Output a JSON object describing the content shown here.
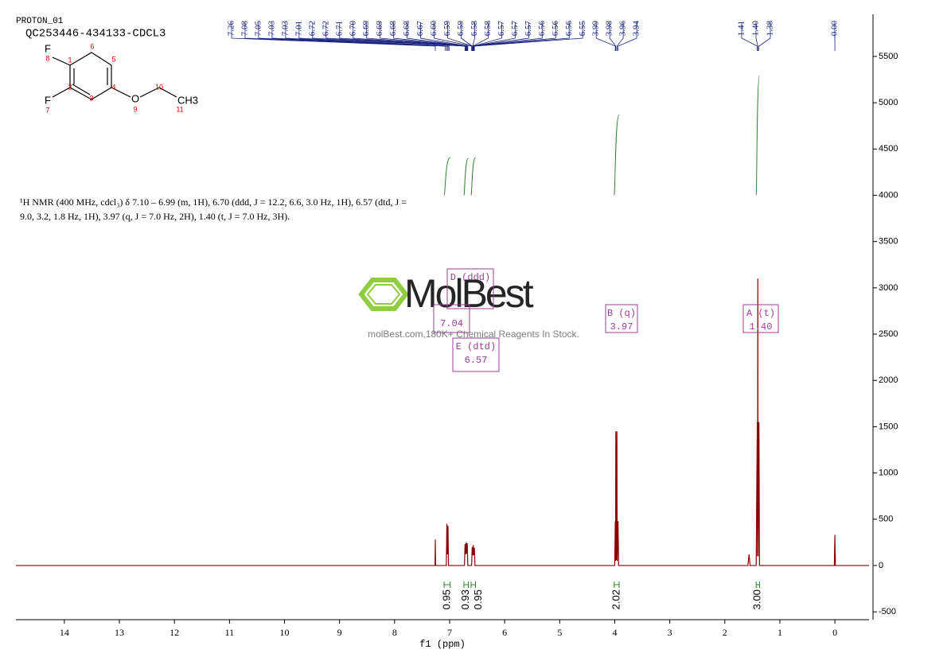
{
  "chart_data": {
    "type": "line",
    "title": "PROTON_01",
    "subtitle": "QC253446-434133-CDCL3",
    "x_label": "f1 (ppm)",
    "xlim": [
      14.88,
      -0.62
    ],
    "xticks": [
      14,
      13,
      12,
      11,
      10,
      9,
      8,
      7,
      6,
      5,
      4,
      3,
      2,
      1,
      0
    ],
    "ylim": [
      -585,
      5955
    ],
    "yticks": [
      -500,
      0,
      500,
      1000,
      1500,
      2000,
      2500,
      3000,
      3500,
      4000,
      4500,
      5000,
      5500
    ],
    "series": [
      {
        "color": "#8b0000",
        "x": [
          14.88,
          7.265,
          7.26,
          7.255,
          7.06,
          7.05,
          7.04,
          7.03,
          7.02,
          6.73,
          6.72,
          6.71,
          6.7,
          6.69,
          6.68,
          6.67,
          6.6,
          6.59,
          6.58,
          6.57,
          6.56,
          6.55,
          6.54,
          4.0,
          3.99,
          3.985,
          3.98,
          3.97,
          3.96,
          3.955,
          3.94,
          3.93,
          1.58,
          1.56,
          1.54,
          1.43,
          1.41,
          1.405,
          1.4,
          1.395,
          1.38,
          1.37,
          0.01,
          0,
          -0.01,
          -0.62
        ],
        "values": [
          0,
          0,
          280,
          0,
          0,
          450,
          120,
          430,
          0,
          0,
          230,
          120,
          250,
          130,
          240,
          0,
          0,
          200,
          110,
          220,
          110,
          190,
          0,
          0,
          480,
          50,
          1450,
          60,
          1450,
          50,
          480,
          0,
          0,
          120,
          0,
          0,
          1550,
          100,
          3100,
          100,
          1550,
          0,
          0,
          330,
          0,
          0
        ]
      }
    ],
    "peak_label_groups": [
      [
        "7.26",
        "7.08",
        "7.05",
        "7.03",
        "7.03",
        "7.01",
        "6.72",
        "6.72",
        "6.71",
        "6.70",
        "6.69",
        "6.69",
        "6.68",
        "6.68",
        "6.67",
        "6.60",
        "6.59",
        "6.59",
        "6.58",
        "6.58",
        "6.57",
        "6.57",
        "6.57",
        "6.56",
        "6.56",
        "6.56",
        "6.55",
        "3.99",
        "3.98",
        "3.96",
        "3.94"
      ],
      [
        "1.41",
        "1.40",
        "1.38"
      ],
      [
        "-0.00"
      ]
    ],
    "integrals": [
      {
        "value": 0.95,
        "label": "0.95",
        "range": [
          7.1,
          6.99
        ]
      },
      {
        "value": 0.93,
        "label": "0.93",
        "range": [
          6.74,
          6.66
        ]
      },
      {
        "value": 0.95,
        "label": "0.95",
        "range": [
          6.61,
          6.53
        ]
      },
      {
        "value": 2.02,
        "label": "2.02",
        "range": [
          4.01,
          3.92
        ]
      },
      {
        "value": 3,
        "label": "3.00",
        "range": [
          1.43,
          1.37
        ]
      }
    ],
    "multiplets": [
      {
        "label": "D (ddd)"
      },
      {
        "shift": "7.04"
      },
      {
        "label": "B (q)",
        "shift": "3.97"
      },
      {
        "label": "A (t)",
        "shift": "1.40"
      },
      {
        "label": "E (dtd)",
        "shift": "6.57"
      }
    ],
    "annotation": [
      "¹H NMR (400 MHz, cdcl₃) δ 7.10 – 6.99 (m, 1H), 6.70 (ddd, J = 12.2, 6.6, 3.0 Hz, 1H), 6.57 (dtd, J =",
      "9.0, 3.2, 1.8 Hz, 1H), 3.97 (q, J = 7.0 Hz, 2H), 1.40 (t, J = 7.0 Hz, 3H)."
    ],
    "molecule": [
      "F",
      "8",
      "1",
      "6",
      "5",
      "2",
      "4",
      "F",
      "7",
      "3",
      "O",
      "9",
      "10",
      "CH3",
      "11"
    ],
    "watermark": {
      "brand": "MolBest",
      "tagline": "molBest.com,180K+ Chemical Reagents In Stock."
    }
  }
}
